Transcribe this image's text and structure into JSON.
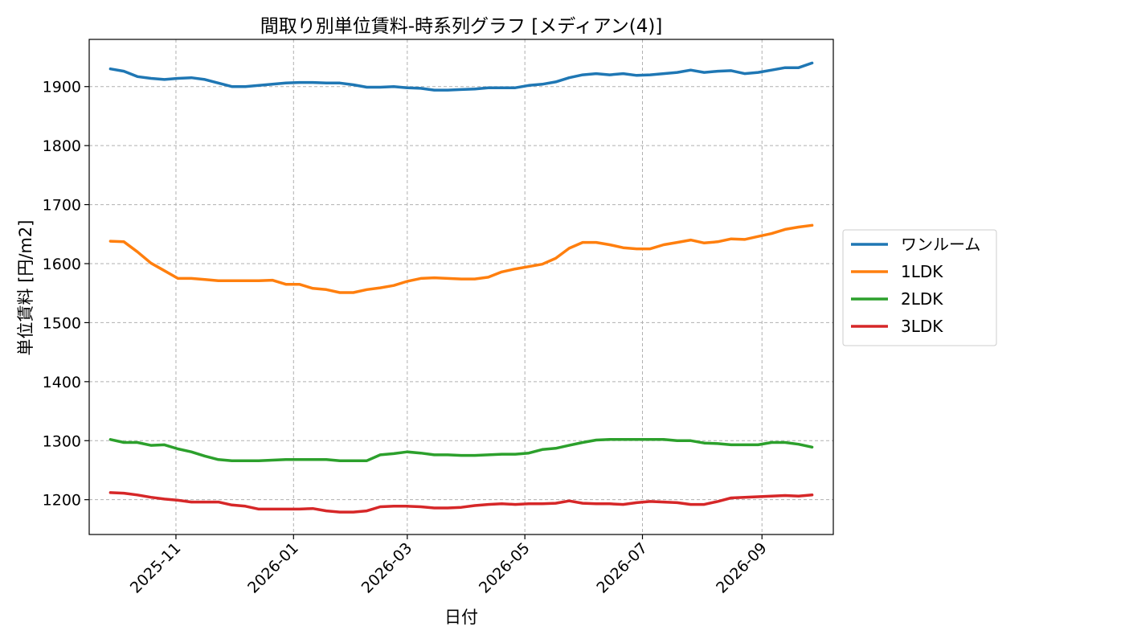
{
  "chart_data": {
    "type": "line",
    "title": "間取り別単位賃料-時系列グラフ [メディアン(4)]",
    "xlabel": "日付",
    "ylabel": "単位賃料 [円/m2]",
    "x_start": "2025-09-28",
    "x_step_days": 7,
    "xlim": [
      "2025-09-17",
      "2026-10-08"
    ],
    "ylim": [
      1141,
      1980
    ],
    "x_ticks": [
      "2025-11-01",
      "2026-01-01",
      "2026-03-01",
      "2026-05-01",
      "2026-07-01",
      "2026-09-01"
    ],
    "x_tick_labels": [
      "2025-11",
      "2026-01",
      "2026-03",
      "2026-05",
      "2026-07",
      "2026-09"
    ],
    "y_ticks": [
      1200,
      1300,
      1400,
      1500,
      1600,
      1700,
      1800,
      1900
    ],
    "y_tick_labels": [
      "1200",
      "1300",
      "1400",
      "1500",
      "1600",
      "1700",
      "1800",
      "1900"
    ],
    "grid": true,
    "legend_position": "right-outside",
    "series": [
      {
        "name": "ワンルーム",
        "color": "#1f77b4",
        "values": [
          1930,
          1926,
          1917,
          1914,
          1912,
          1914,
          1915,
          1912,
          1906,
          1900,
          1900,
          1902,
          1904,
          1906,
          1907,
          1907,
          1906,
          1906,
          1903,
          1899,
          1899,
          1900,
          1898,
          1897,
          1894,
          1894,
          1895,
          1896,
          1898,
          1898,
          1898,
          1902,
          1904,
          1908,
          1915,
          1920,
          1922,
          1920,
          1922,
          1919,
          1920,
          1922,
          1924,
          1928,
          1924,
          1926,
          1927,
          1922,
          1924,
          1928,
          1932,
          1932,
          1940
        ]
      },
      {
        "name": "1LDK",
        "color": "#ff7f0e",
        "values": [
          1638,
          1637,
          1620,
          1601,
          1588,
          1575,
          1575,
          1573,
          1571,
          1571,
          1571,
          1571,
          1572,
          1565,
          1565,
          1558,
          1556,
          1551,
          1551,
          1556,
          1559,
          1563,
          1570,
          1575,
          1576,
          1575,
          1574,
          1574,
          1577,
          1586,
          1591,
          1595,
          1599,
          1609,
          1626,
          1636,
          1636,
          1632,
          1627,
          1625,
          1625,
          1632,
          1636,
          1640,
          1635,
          1637,
          1642,
          1641,
          1646,
          1651,
          1658,
          1662,
          1665
        ]
      },
      {
        "name": "2LDK",
        "color": "#2ca02c",
        "values": [
          1302,
          1297,
          1297,
          1292,
          1293,
          1286,
          1281,
          1274,
          1268,
          1266,
          1266,
          1266,
          1267,
          1268,
          1268,
          1268,
          1268,
          1266,
          1266,
          1266,
          1276,
          1278,
          1281,
          1279,
          1276,
          1276,
          1275,
          1275,
          1276,
          1277,
          1277,
          1279,
          1285,
          1287,
          1292,
          1297,
          1301,
          1302,
          1302,
          1302,
          1302,
          1302,
          1300,
          1300,
          1296,
          1295,
          1293,
          1293,
          1293,
          1297,
          1297,
          1294,
          1289
        ]
      },
      {
        "name": "3LDK",
        "color": "#d62728",
        "values": [
          1212,
          1211,
          1208,
          1204,
          1201,
          1199,
          1196,
          1196,
          1196,
          1191,
          1189,
          1184,
          1184,
          1184,
          1184,
          1185,
          1181,
          1179,
          1179,
          1181,
          1188,
          1189,
          1189,
          1188,
          1186,
          1186,
          1187,
          1190,
          1192,
          1193,
          1192,
          1193,
          1193,
          1194,
          1198,
          1194,
          1193,
          1193,
          1192,
          1195,
          1197,
          1196,
          1195,
          1192,
          1192,
          1197,
          1203,
          1204,
          1205,
          1206,
          1207,
          1206,
          1208
        ]
      }
    ]
  }
}
